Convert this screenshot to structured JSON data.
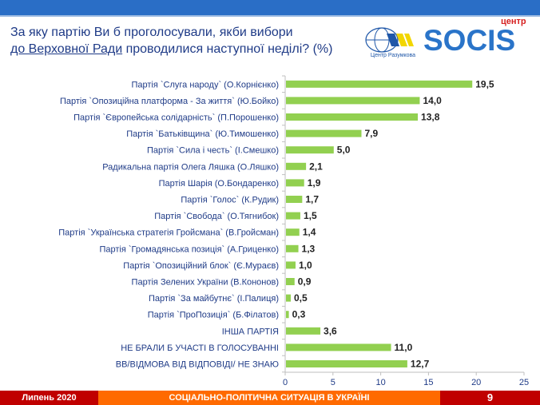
{
  "header": {
    "title_line1": "За яку партію Ви б проголосували, якби вибори",
    "title_underlined": "до Верховної Ради",
    "title_line2_rest": " проводилися наступної неділі? (%)",
    "logo_razumkov": "Центр Разумкова",
    "logo_socis": "SOCIS",
    "logo_socis_centr": "центр"
  },
  "footer": {
    "date": "Липень 2020",
    "section": "СОЦІАЛЬНО-ПОЛІТИЧНА СИТУАЦІЯ В УКРАЇНІ",
    "page": "9"
  },
  "chart_data": {
    "type": "bar",
    "orientation": "horizontal",
    "categories": [
      "Партія `Слуга народу` (О.Корнієнко)",
      "Партія `Опозиційна платформа - За життя` (Ю.Бойко)",
      "Партія `Європейська солідарність` (П.Порошенко)",
      "Партія `Батьківщина` (Ю.Тимошенко)",
      "Партія `Сила і честь` (І.Смешко)",
      "Радикальна партія Олега Ляшка (О.Ляшко)",
      "Партія Шарія (О.Бондаренко)",
      "Партія `Голос` (К.Рудик)",
      "Партія `Свобода` (О.Тягнибок)",
      "Партія `Українська стратегія Гройсмана` (В.Гройсман)",
      "Партія `Громадянська позиція` (А.Гриценко)",
      "Партія `Опозиційний блок` (Є.Мураєв)",
      "Партія Зелених України (В.Кононов)",
      "Партія `За майбутнє` (І.Палиця)",
      "Партія `ПроПозиція` (Б.Філатов)",
      "ІНША ПАРТІЯ",
      "НЕ БРАЛИ Б УЧАСТІ В ГОЛОСУВАННІ",
      "ВВ/ВІДМОВА ВІД ВІДПОВІДІ/ НЕ ЗНАЮ"
    ],
    "values": [
      19.5,
      14.0,
      13.8,
      7.9,
      5.0,
      2.1,
      1.9,
      1.7,
      1.5,
      1.4,
      1.3,
      1.0,
      0.9,
      0.5,
      0.3,
      3.6,
      11.0,
      12.7
    ],
    "value_labels": [
      "19,5",
      "14,0",
      "13,8",
      "7,9",
      "5,0",
      "2,1",
      "1,9",
      "1,7",
      "1,5",
      "1,4",
      "1,3",
      "1,0",
      "0,9",
      "0,5",
      "0,3",
      "3,6",
      "11,0",
      "12,7"
    ],
    "xlim": [
      0,
      25
    ],
    "xticks": [
      "0",
      "5",
      "10",
      "15",
      "20",
      "25"
    ],
    "bar_color": "#92d050",
    "grid": false
  }
}
